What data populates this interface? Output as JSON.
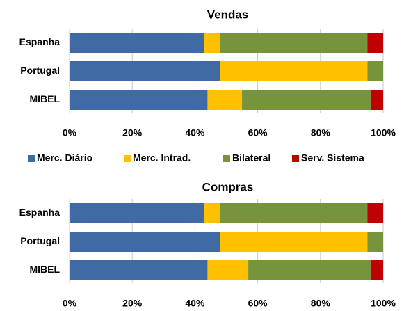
{
  "chart_data": [
    {
      "type": "stacked-bar-horizontal",
      "title": "Vendas",
      "categories": [
        "Espanha",
        "Portugal",
        "MIBEL"
      ],
      "series": [
        {
          "name": "Merc. Diário",
          "color": "#3f6aa3",
          "values": [
            43,
            48,
            44
          ]
        },
        {
          "name": "Merc. Intrad.",
          "color": "#ffc000",
          "values": [
            5,
            47,
            11
          ]
        },
        {
          "name": "Bilateral",
          "color": "#77933c",
          "values": [
            47,
            5,
            41
          ]
        },
        {
          "name": "Serv. Sistema",
          "color": "#c00000",
          "values": [
            5,
            0,
            4
          ]
        }
      ],
      "xlim": [
        0,
        100
      ],
      "xticks": [
        {
          "value": 0,
          "label": "0%"
        },
        {
          "value": 20,
          "label": "20%"
        },
        {
          "value": 40,
          "label": "40%"
        },
        {
          "value": 60,
          "label": "60%"
        },
        {
          "value": 80,
          "label": "80%"
        },
        {
          "value": 100,
          "label": "100%"
        }
      ],
      "grid": true,
      "legend": "bottom"
    },
    {
      "type": "stacked-bar-horizontal",
      "title": "Compras",
      "categories": [
        "Espanha",
        "Portugal",
        "MIBEL"
      ],
      "series": [
        {
          "color": "#3f6aa3",
          "values": [
            43,
            48,
            44
          ]
        },
        {
          "color": "#ffc000",
          "values": [
            5,
            47,
            13
          ]
        },
        {
          "color": "#77933c",
          "values": [
            47,
            5,
            39
          ]
        },
        {
          "color": "#c00000",
          "values": [
            5,
            0,
            4
          ]
        }
      ],
      "xlim": [
        0,
        100
      ],
      "xticks": [
        {
          "value": 0,
          "label": "0%"
        },
        {
          "value": 20,
          "label": "20%"
        },
        {
          "value": 40,
          "label": "40%"
        },
        {
          "value": 60,
          "label": "60%"
        },
        {
          "value": 80,
          "label": "80%"
        },
        {
          "value": 100,
          "label": "100%"
        }
      ],
      "grid": true
    }
  ]
}
